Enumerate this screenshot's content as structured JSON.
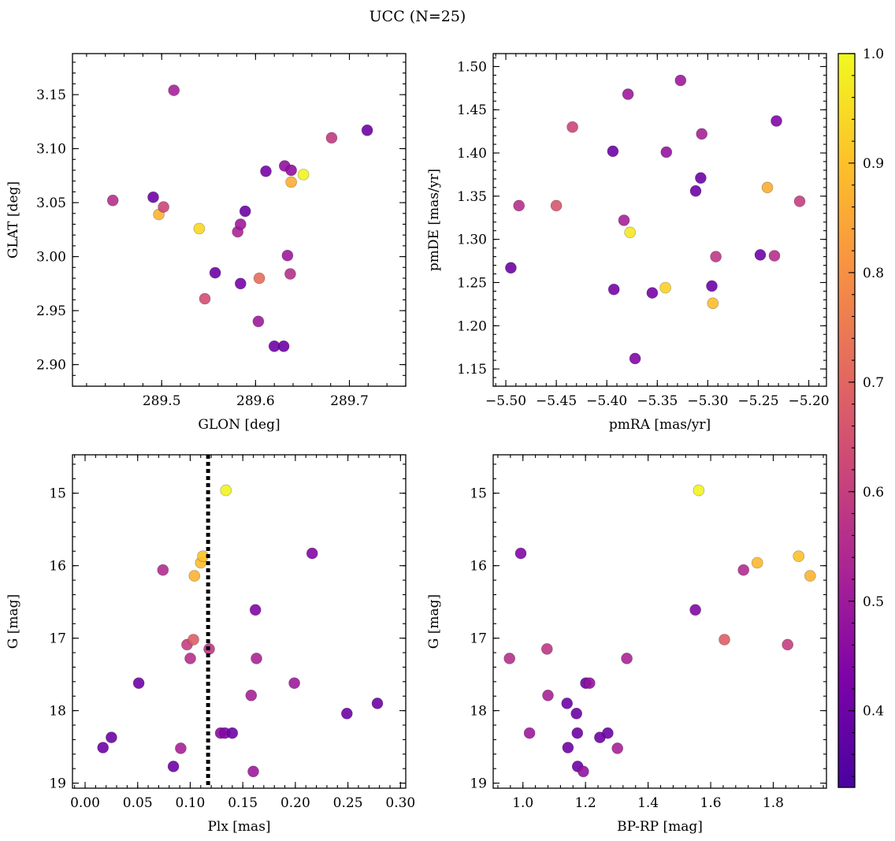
{
  "figure": {
    "title": "UCC (N=25)"
  },
  "chart_data": [
    {
      "type": "scatter",
      "xlabel": "GLON [deg]",
      "ylabel": "GLAT [deg]",
      "xlim": [
        289.405,
        289.76
      ],
      "ylim": [
        2.88,
        3.188
      ],
      "xticks": [
        289.5,
        289.6,
        289.7
      ],
      "xtick_labels": [
        "289.5",
        "289.6",
        "289.7"
      ],
      "xminor": 0.02,
      "yticks": [
        2.9,
        2.95,
        3.0,
        3.05,
        3.1,
        3.15
      ],
      "ytick_labels": [
        "2.90",
        "2.95",
        "3.00",
        "3.05",
        "3.10",
        "3.15"
      ],
      "yminor": 0.01,
      "invert_y": false,
      "points": [
        {
          "x": 289.448,
          "y": 3.052,
          "c": 0.56
        },
        {
          "x": 289.491,
          "y": 3.055,
          "c": 0.4
        },
        {
          "x": 289.497,
          "y": 3.039,
          "c": 0.87
        },
        {
          "x": 289.502,
          "y": 3.046,
          "c": 0.62
        },
        {
          "x": 289.513,
          "y": 3.154,
          "c": 0.52
        },
        {
          "x": 289.54,
          "y": 3.026,
          "c": 0.94
        },
        {
          "x": 289.546,
          "y": 2.961,
          "c": 0.64
        },
        {
          "x": 289.557,
          "y": 2.985,
          "c": 0.4
        },
        {
          "x": 289.581,
          "y": 3.023,
          "c": 0.53
        },
        {
          "x": 289.584,
          "y": 2.975,
          "c": 0.42
        },
        {
          "x": 289.584,
          "y": 3.03,
          "c": 0.5
        },
        {
          "x": 289.589,
          "y": 3.042,
          "c": 0.4
        },
        {
          "x": 289.603,
          "y": 2.94,
          "c": 0.5
        },
        {
          "x": 289.604,
          "y": 2.98,
          "c": 0.72
        },
        {
          "x": 289.611,
          "y": 3.079,
          "c": 0.42
        },
        {
          "x": 289.62,
          "y": 2.917,
          "c": 0.4
        },
        {
          "x": 289.63,
          "y": 2.917,
          "c": 0.4
        },
        {
          "x": 289.631,
          "y": 3.084,
          "c": 0.47
        },
        {
          "x": 289.634,
          "y": 3.001,
          "c": 0.5
        },
        {
          "x": 289.637,
          "y": 2.984,
          "c": 0.56
        },
        {
          "x": 289.638,
          "y": 3.08,
          "c": 0.47
        },
        {
          "x": 289.638,
          "y": 3.069,
          "c": 0.86
        },
        {
          "x": 289.651,
          "y": 3.076,
          "c": 0.99
        },
        {
          "x": 289.681,
          "y": 3.11,
          "c": 0.59
        },
        {
          "x": 289.719,
          "y": 3.117,
          "c": 0.4
        }
      ]
    },
    {
      "type": "scatter",
      "xlabel": "pmRA [mas/yr]",
      "ylabel": "pmDE [mas/yr]",
      "xlim": [
        -5.5125,
        -5.1825
      ],
      "ylim": [
        1.13,
        1.515
      ],
      "xticks": [
        -5.5,
        -5.45,
        -5.4,
        -5.35,
        -5.3,
        -5.25,
        -5.2
      ],
      "xtick_labels": [
        "−5.50",
        "−5.45",
        "−5.40",
        "−5.35",
        "−5.30",
        "−5.25",
        "−5.20"
      ],
      "xminor": 0.01,
      "yticks": [
        1.15,
        1.2,
        1.25,
        1.3,
        1.35,
        1.4,
        1.45,
        1.5
      ],
      "ytick_labels": [
        "1.15",
        "1.20",
        "1.25",
        "1.30",
        "1.35",
        "1.40",
        "1.45",
        "1.50"
      ],
      "yminor": 0.01,
      "invert_y": false,
      "points": [
        {
          "x": -5.495,
          "y": 1.267,
          "c": 0.4
        },
        {
          "x": -5.487,
          "y": 1.339,
          "c": 0.56
        },
        {
          "x": -5.45,
          "y": 1.339,
          "c": 0.66
        },
        {
          "x": -5.434,
          "y": 1.43,
          "c": 0.62
        },
        {
          "x": -5.394,
          "y": 1.402,
          "c": 0.4
        },
        {
          "x": -5.393,
          "y": 1.242,
          "c": 0.42
        },
        {
          "x": -5.383,
          "y": 1.322,
          "c": 0.52
        },
        {
          "x": -5.379,
          "y": 1.468,
          "c": 0.5
        },
        {
          "x": -5.377,
          "y": 1.308,
          "c": 0.97
        },
        {
          "x": -5.372,
          "y": 1.162,
          "c": 0.44
        },
        {
          "x": -5.355,
          "y": 1.238,
          "c": 0.42
        },
        {
          "x": -5.342,
          "y": 1.244,
          "c": 0.93
        },
        {
          "x": -5.341,
          "y": 1.401,
          "c": 0.48
        },
        {
          "x": -5.327,
          "y": 1.484,
          "c": 0.5
        },
        {
          "x": -5.312,
          "y": 1.356,
          "c": 0.4
        },
        {
          "x": -5.307,
          "y": 1.371,
          "c": 0.4
        },
        {
          "x": -5.306,
          "y": 1.422,
          "c": 0.52
        },
        {
          "x": -5.296,
          "y": 1.246,
          "c": 0.4
        },
        {
          "x": -5.295,
          "y": 1.226,
          "c": 0.89
        },
        {
          "x": -5.292,
          "y": 1.28,
          "c": 0.58
        },
        {
          "x": -5.248,
          "y": 1.282,
          "c": 0.4
        },
        {
          "x": -5.241,
          "y": 1.36,
          "c": 0.86
        },
        {
          "x": -5.234,
          "y": 1.281,
          "c": 0.56
        },
        {
          "x": -5.232,
          "y": 1.437,
          "c": 0.44
        },
        {
          "x": -5.209,
          "y": 1.344,
          "c": 0.6
        }
      ]
    },
    {
      "type": "scatter",
      "xlabel": "Plx [mas]",
      "ylabel": "G [mag]",
      "xlim": [
        -0.012,
        0.305
      ],
      "ylim": [
        19.07,
        14.47
      ],
      "xticks": [
        0.0,
        0.05,
        0.1,
        0.15,
        0.2,
        0.25,
        0.3
      ],
      "xtick_labels": [
        "0.00",
        "0.05",
        "0.10",
        "0.15",
        "0.20",
        "0.25",
        "0.30"
      ],
      "xminor": 0.01,
      "yticks": [
        15,
        16,
        17,
        18,
        19
      ],
      "ytick_labels": [
        "15",
        "16",
        "17",
        "18",
        "19"
      ],
      "yminor": 0.2,
      "invert_y": true,
      "vline": 0.117,
      "points": [
        {
          "x": 0.017,
          "y": 18.51,
          "c": 0.4
        },
        {
          "x": 0.025,
          "y": 18.37,
          "c": 0.4
        },
        {
          "x": 0.051,
          "y": 17.62,
          "c": 0.4
        },
        {
          "x": 0.074,
          "y": 16.06,
          "c": 0.55
        },
        {
          "x": 0.084,
          "y": 18.77,
          "c": 0.4
        },
        {
          "x": 0.091,
          "y": 18.52,
          "c": 0.52
        },
        {
          "x": 0.097,
          "y": 17.09,
          "c": 0.6
        },
        {
          "x": 0.1,
          "y": 17.28,
          "c": 0.56
        },
        {
          "x": 0.103,
          "y": 17.02,
          "c": 0.68
        },
        {
          "x": 0.104,
          "y": 16.14,
          "c": 0.87
        },
        {
          "x": 0.11,
          "y": 15.96,
          "c": 0.89
        },
        {
          "x": 0.112,
          "y": 15.87,
          "c": 0.9
        },
        {
          "x": 0.118,
          "y": 17.15,
          "c": 0.58
        },
        {
          "x": 0.129,
          "y": 18.31,
          "c": 0.46
        },
        {
          "x": 0.133,
          "y": 18.31,
          "c": 0.44
        },
        {
          "x": 0.134,
          "y": 14.96,
          "c": 0.99
        },
        {
          "x": 0.14,
          "y": 18.31,
          "c": 0.4
        },
        {
          "x": 0.158,
          "y": 17.79,
          "c": 0.52
        },
        {
          "x": 0.16,
          "y": 18.84,
          "c": 0.5
        },
        {
          "x": 0.162,
          "y": 16.61,
          "c": 0.44
        },
        {
          "x": 0.163,
          "y": 17.28,
          "c": 0.53
        },
        {
          "x": 0.199,
          "y": 17.62,
          "c": 0.5
        },
        {
          "x": 0.216,
          "y": 15.83,
          "c": 0.44
        },
        {
          "x": 0.249,
          "y": 18.04,
          "c": 0.4
        },
        {
          "x": 0.278,
          "y": 17.9,
          "c": 0.4
        }
      ]
    },
    {
      "type": "scatter",
      "xlabel": "BP-RP [mag]",
      "ylabel": "G [mag]",
      "xlim": [
        0.905,
        1.97
      ],
      "ylim": [
        19.07,
        14.47
      ],
      "xticks": [
        1.0,
        1.2,
        1.4,
        1.6,
        1.8
      ],
      "xtick_labels": [
        "1.0",
        "1.2",
        "1.4",
        "1.6",
        "1.8"
      ],
      "xminor": 0.04,
      "yticks": [
        15,
        16,
        17,
        18,
        19
      ],
      "ytick_labels": [
        "15",
        "16",
        "17",
        "18",
        "19"
      ],
      "yminor": 0.2,
      "invert_y": true,
      "points": [
        {
          "x": 0.957,
          "y": 17.28,
          "c": 0.56
        },
        {
          "x": 0.993,
          "y": 15.83,
          "c": 0.44
        },
        {
          "x": 1.021,
          "y": 18.31,
          "c": 0.5
        },
        {
          "x": 1.077,
          "y": 17.15,
          "c": 0.58
        },
        {
          "x": 1.08,
          "y": 17.79,
          "c": 0.52
        },
        {
          "x": 1.141,
          "y": 17.9,
          "c": 0.4
        },
        {
          "x": 1.144,
          "y": 18.51,
          "c": 0.4
        },
        {
          "x": 1.171,
          "y": 18.04,
          "c": 0.4
        },
        {
          "x": 1.174,
          "y": 18.31,
          "c": 0.4
        },
        {
          "x": 1.175,
          "y": 18.77,
          "c": 0.4
        },
        {
          "x": 1.193,
          "y": 18.84,
          "c": 0.48
        },
        {
          "x": 1.201,
          "y": 17.62,
          "c": 0.4
        },
        {
          "x": 1.213,
          "y": 17.62,
          "c": 0.48
        },
        {
          "x": 1.246,
          "y": 18.37,
          "c": 0.4
        },
        {
          "x": 1.271,
          "y": 18.31,
          "c": 0.4
        },
        {
          "x": 1.302,
          "y": 18.52,
          "c": 0.52
        },
        {
          "x": 1.332,
          "y": 17.28,
          "c": 0.53
        },
        {
          "x": 1.551,
          "y": 16.61,
          "c": 0.44
        },
        {
          "x": 1.562,
          "y": 14.96,
          "c": 0.99
        },
        {
          "x": 1.644,
          "y": 17.02,
          "c": 0.68
        },
        {
          "x": 1.705,
          "y": 16.06,
          "c": 0.55
        },
        {
          "x": 1.749,
          "y": 15.96,
          "c": 0.88
        },
        {
          "x": 1.846,
          "y": 17.09,
          "c": 0.6
        },
        {
          "x": 1.881,
          "y": 15.87,
          "c": 0.9
        },
        {
          "x": 1.918,
          "y": 16.14,
          "c": 0.87
        }
      ]
    }
  ],
  "colorbar": {
    "colormap": "plasma",
    "range": [
      0.33,
      1.0
    ],
    "ticks": [
      0.4,
      0.5,
      0.6,
      0.7,
      0.8,
      0.9,
      1.0
    ],
    "tick_labels": [
      "0.4",
      "0.5",
      "0.6",
      "0.7",
      "0.8",
      "0.9",
      "1.0"
    ],
    "minor": 0.02
  },
  "vline_color": "#000000"
}
